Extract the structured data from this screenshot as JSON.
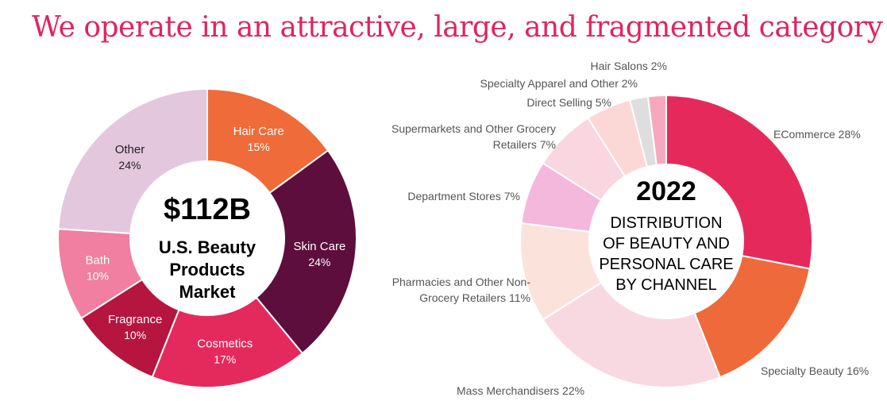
{
  "title": "We operate in an attractive, large, and fragmented category",
  "colors": {
    "title": "#e0245e",
    "center_text": "#000000",
    "label_grey": "#555555"
  },
  "chart_data": [
    {
      "type": "pie",
      "center": {
        "value": "$112B",
        "lines": [
          "U.S. Beauty",
          "Products",
          "Market"
        ]
      },
      "slices": [
        {
          "label": "Hair Care",
          "value": 15,
          "value_label": "15%",
          "color": "#ef6b3a"
        },
        {
          "label": "Skin Care",
          "value": 24,
          "value_label": "24%",
          "color": "#5d0e3d"
        },
        {
          "label": "Cosmetics",
          "value": 17,
          "value_label": "17%",
          "color": "#e42a5d"
        },
        {
          "label": "Fragrance",
          "value": 10,
          "value_label": "10%",
          "color": "#b5153f"
        },
        {
          "label": "Bath",
          "value": 10,
          "value_label": "10%",
          "color": "#f07fa1"
        },
        {
          "label": "Other",
          "value": 24,
          "value_label": "24%",
          "color": "#e3c7dc"
        }
      ]
    },
    {
      "type": "pie",
      "center": {
        "value": "2022",
        "lines": [
          "DISTRIBUTION",
          "OF BEAUTY AND",
          "PERSONAL CARE",
          "BY CHANNEL"
        ]
      },
      "slices": [
        {
          "label": "ECommerce 28%",
          "value": 28,
          "color": "#e52a5b"
        },
        {
          "label": "Specialty Beauty 16%",
          "value": 16,
          "color": "#ef6a3a"
        },
        {
          "label": "Mass Merchandisers 22%",
          "value": 22,
          "color": "#f8d9e2"
        },
        {
          "label": "Pharmacies and Other Non-\nGrocery Retailers 11%",
          "value": 11,
          "color": "#fbe3dc"
        },
        {
          "label": "Department Stores 7%",
          "value": 7,
          "color": "#f3b8db"
        },
        {
          "label": "Supermarkets and Other Grocery\nRetailers 7%",
          "value": 7,
          "color": "#f9d6e0"
        },
        {
          "label": "Direct Selling 5%",
          "value": 5,
          "color": "#fbd8d6"
        },
        {
          "label": "Specialty Apparel and Other 2%",
          "value": 2,
          "color": "#dedede"
        },
        {
          "label": "Hair Salons 2%",
          "value": 2,
          "color": "#f6a9bd"
        }
      ]
    }
  ]
}
